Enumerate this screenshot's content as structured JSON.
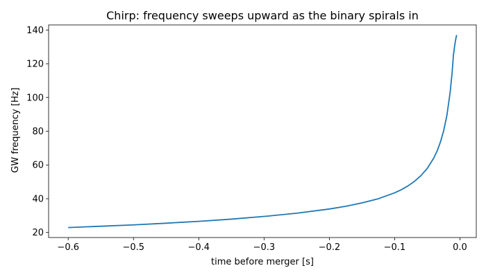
{
  "chart_data": {
    "type": "line",
    "title": "Chirp: frequency sweeps upward as the binary spirals in",
    "xlabel": "time before merger [s]",
    "ylabel": "GW frequency [Hz]",
    "xlim": [
      -0.63,
      0.025
    ],
    "ylim": [
      17,
      143
    ],
    "xticks": [
      -0.6,
      -0.5,
      -0.4,
      -0.3,
      -0.2,
      -0.1,
      0.0
    ],
    "xtick_labels": [
      "−0.6",
      "−0.5",
      "−0.4",
      "−0.3",
      "−0.2",
      "−0.1",
      "0.0"
    ],
    "yticks": [
      20,
      40,
      60,
      80,
      100,
      120,
      140
    ],
    "ytick_labels": [
      "20",
      "40",
      "60",
      "80",
      "100",
      "120",
      "140"
    ],
    "grid": false,
    "line_color": "#1f77b4",
    "series": [
      {
        "x": [
          -0.6,
          -0.55,
          -0.5,
          -0.45,
          -0.4,
          -0.35,
          -0.3,
          -0.25,
          -0.2,
          -0.175,
          -0.15,
          -0.125,
          -0.1,
          -0.09,
          -0.08,
          -0.07,
          -0.06,
          -0.05,
          -0.04,
          -0.035,
          -0.03,
          -0.025,
          -0.02,
          -0.015,
          -0.012,
          -0.01,
          -0.008,
          -0.006,
          -0.005
        ],
        "values": [
          22.9,
          23.7,
          24.5,
          25.5,
          26.6,
          27.9,
          29.5,
          31.4,
          33.9,
          35.5,
          37.5,
          40.0,
          43.5,
          45.3,
          47.5,
          50.2,
          53.6,
          58.0,
          64.2,
          68.3,
          73.5,
          80.2,
          89.4,
          103.1,
          114.8,
          125.0,
          131.0,
          135.5,
          137.0
        ]
      }
    ]
  }
}
